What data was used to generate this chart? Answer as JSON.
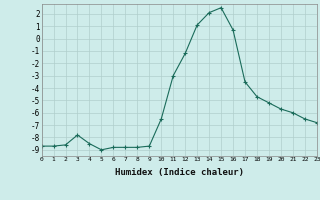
{
  "x": [
    0,
    1,
    2,
    3,
    4,
    5,
    6,
    7,
    8,
    9,
    10,
    11,
    12,
    13,
    14,
    15,
    16,
    17,
    18,
    19,
    20,
    21,
    22,
    23
  ],
  "y": [
    -8.7,
    -8.7,
    -8.6,
    -7.8,
    -8.5,
    -9.0,
    -8.8,
    -8.8,
    -8.8,
    -8.7,
    -6.5,
    -3.0,
    -1.2,
    1.1,
    2.1,
    2.5,
    0.7,
    -3.5,
    -4.7,
    -5.2,
    -5.7,
    -6.0,
    -6.5,
    -6.8
  ],
  "xlim": [
    0,
    23
  ],
  "ylim": [
    -9.5,
    2.8
  ],
  "yticks": [
    2,
    1,
    0,
    -1,
    -2,
    -3,
    -4,
    -5,
    -6,
    -7,
    -8,
    -9
  ],
  "xticks": [
    0,
    1,
    2,
    3,
    4,
    5,
    6,
    7,
    8,
    9,
    10,
    11,
    12,
    13,
    14,
    15,
    16,
    17,
    18,
    19,
    20,
    21,
    22,
    23
  ],
  "xlabel": "Humidex (Indice chaleur)",
  "line_color": "#1a6b5a",
  "marker": "+",
  "bg_color": "#ceecea",
  "grid_color": "#b0cfcc",
  "title": ""
}
